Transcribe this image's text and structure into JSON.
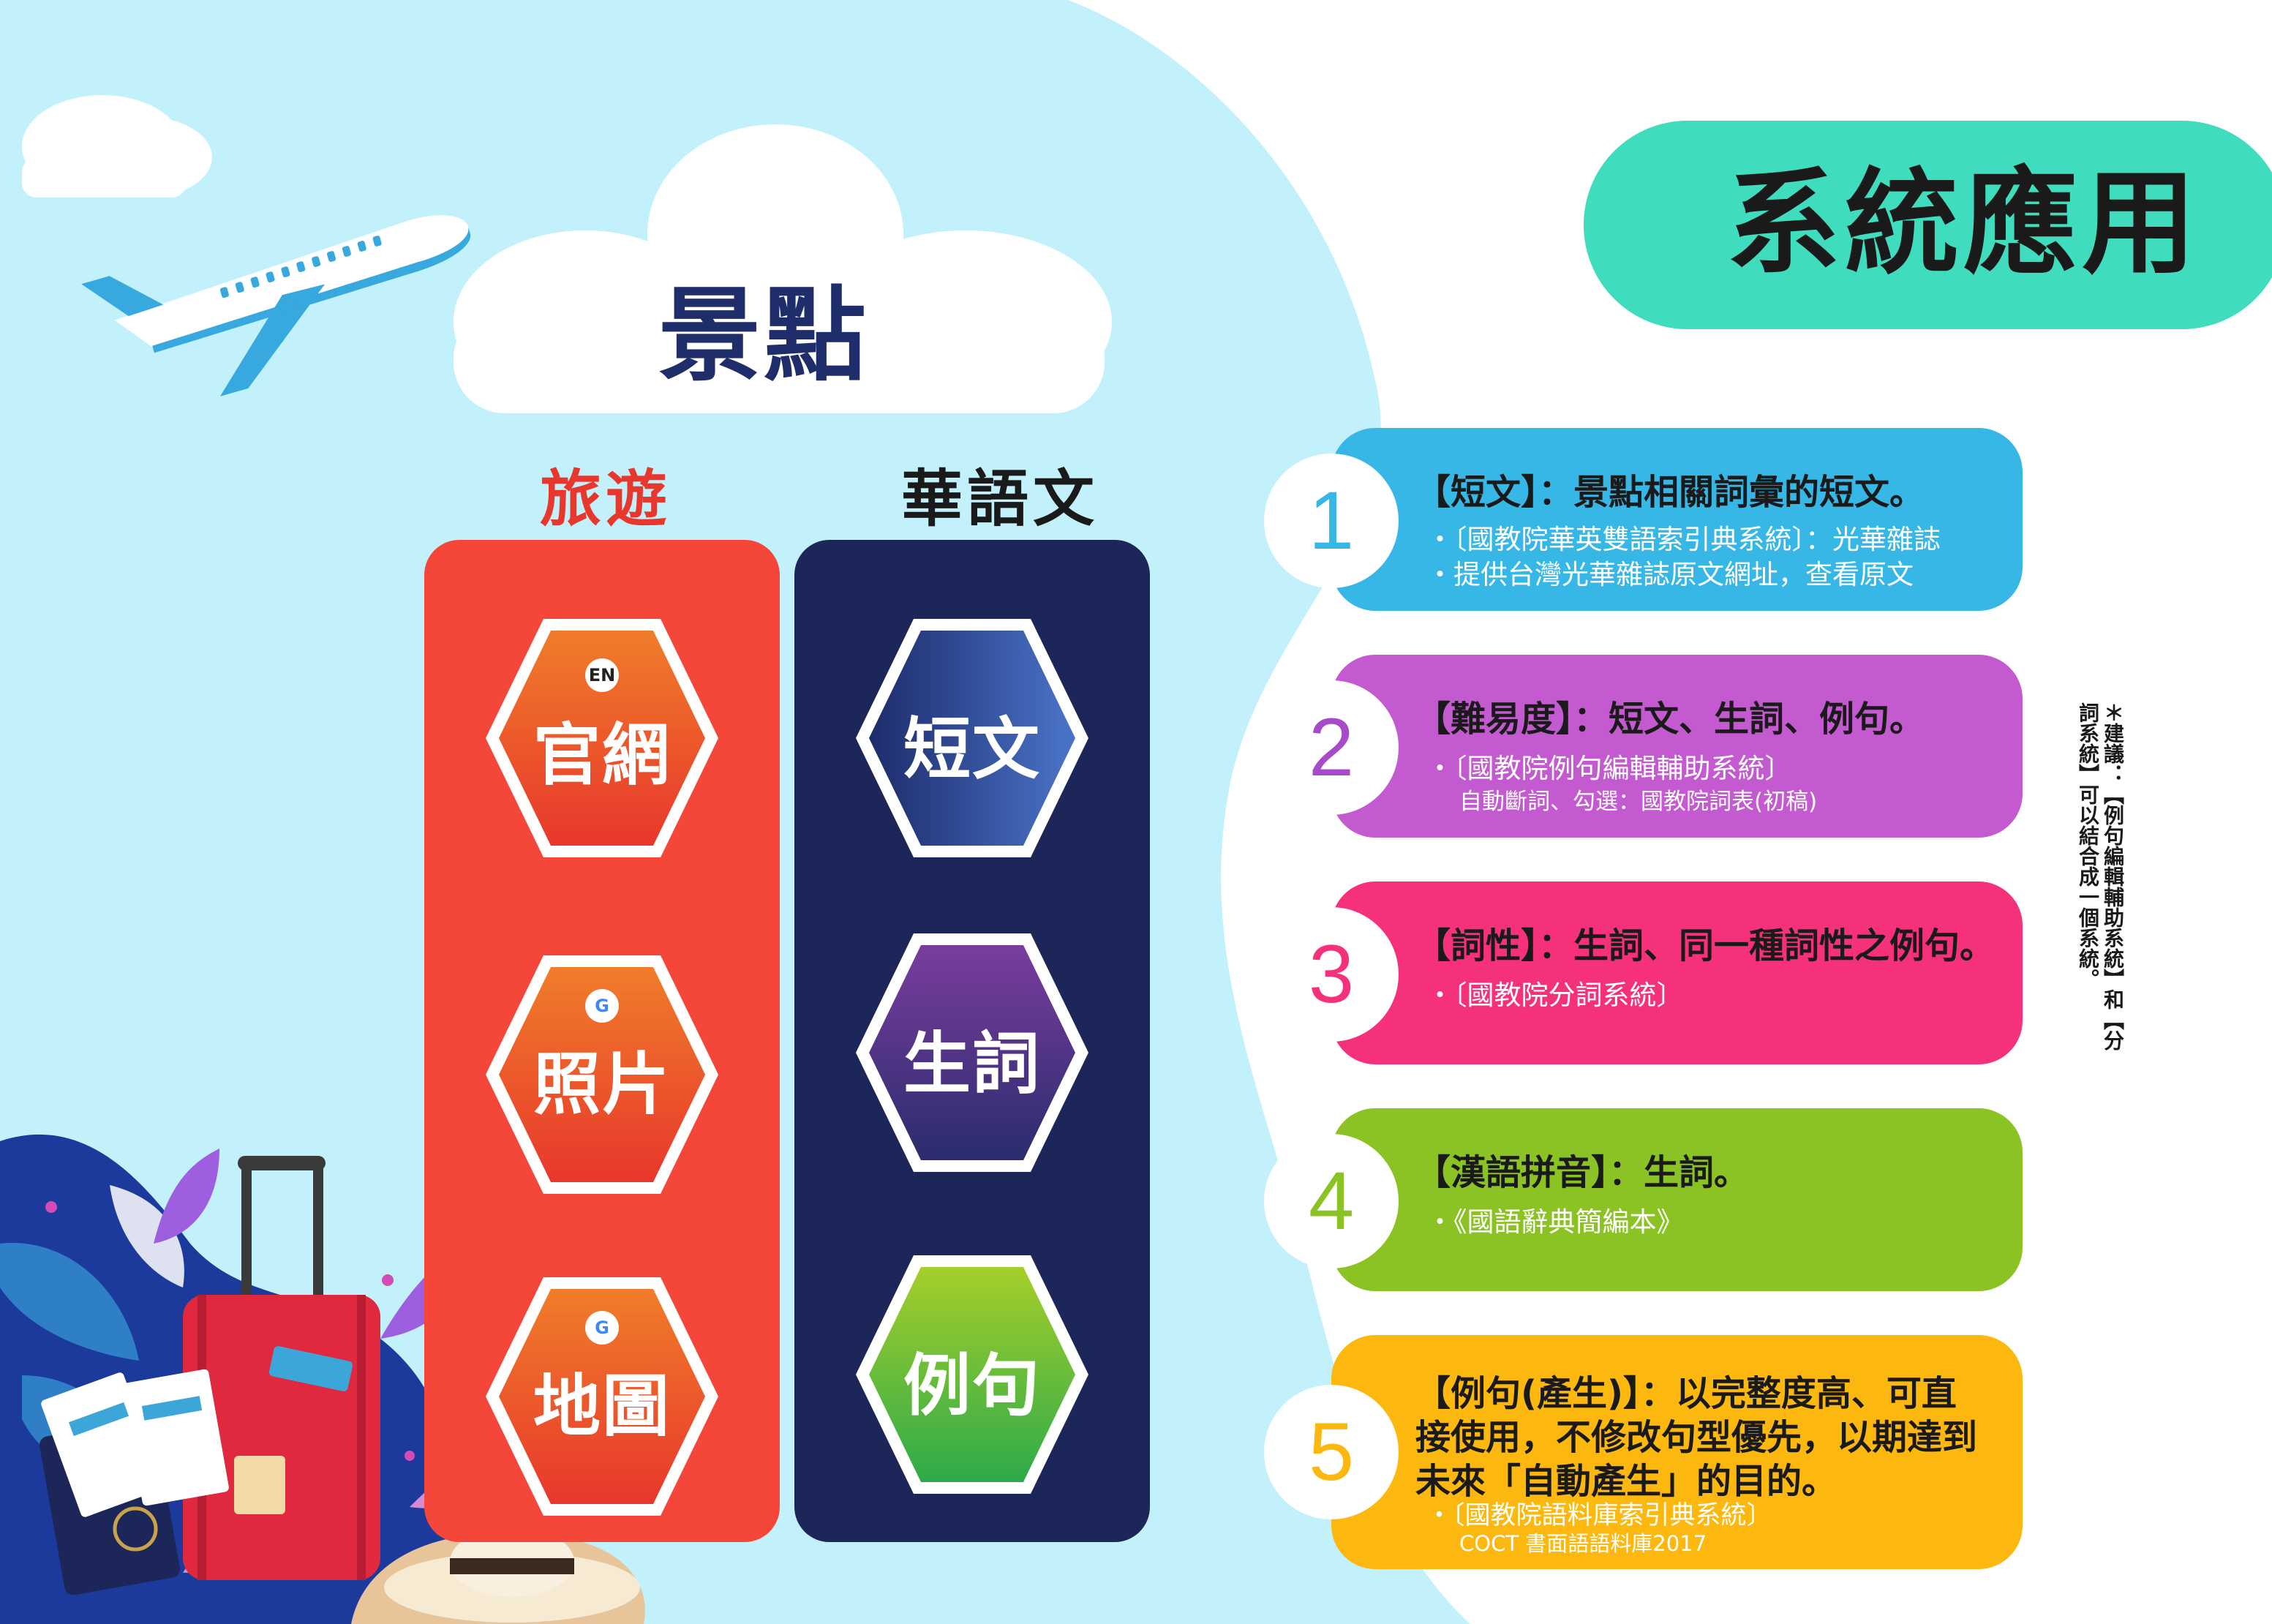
{
  "title": "系統應用",
  "cloud_heading": "景點",
  "columns": {
    "left": {
      "heading": "旅遊",
      "items": [
        {
          "label": "官網",
          "badge": "EN"
        },
        {
          "label": "照片",
          "badge": "G"
        },
        {
          "label": "地圖",
          "badge": "G"
        }
      ]
    },
    "right": {
      "heading": "華語文",
      "items": [
        {
          "label": "短文"
        },
        {
          "label": "生詞"
        },
        {
          "label": "例句"
        }
      ]
    }
  },
  "cards": [
    {
      "number": "1",
      "title": "【短文】：景點相關詞彙的短文。",
      "lines": [
        "・〔國教院華英雙語索引典系統〕：光華雜誌",
        "・提供台灣光華雜誌原文網址，查看原文"
      ],
      "small": ""
    },
    {
      "number": "2",
      "title": "【難易度】：短文、生詞、例句。",
      "lines": [
        "・〔國教院例句編輯輔助系統〕"
      ],
      "small": "自動斷詞、勾選：國教院詞表(初稿)"
    },
    {
      "number": "3",
      "title": "【詞性】：生詞、同一種詞性之例句。",
      "lines": [
        "・〔國教院分詞系統〕"
      ],
      "small": ""
    },
    {
      "number": "4",
      "title": "【漢語拼音】：生詞。",
      "lines": [
        "・《國語辭典簡編本》"
      ],
      "small": ""
    },
    {
      "number": "5",
      "title_lines": [
        "【例句(產生)】：以完整度高、可直",
        "接使用，不修改句型優先，以期達到",
        "未來「自動產生」的目的。"
      ],
      "lines": [
        "・〔國教院語料庫索引典系統〕"
      ],
      "small": "COCT 書面語語料庫2017"
    }
  ],
  "side_note": "＊建議：【例句編輯輔助系統】和【分詞系統】可以結合成一個系統。",
  "colors": {
    "sky": "#c3f1fb",
    "title_pill": "#3fdcbd",
    "col_left": "#f4473a",
    "col_right": "#1d2658",
    "card1": "#37b7e6",
    "card2": "#c45ad0",
    "card3": "#f6317b",
    "card4": "#8cc324",
    "card5": "#fcb80e"
  },
  "icons": [
    "airplane-icon",
    "cloud-icon",
    "suitcase-icon",
    "passport-icon",
    "sun-hat-icon",
    "tropical-leaf-icon",
    "google-g-icon",
    "en-badge-icon"
  ]
}
